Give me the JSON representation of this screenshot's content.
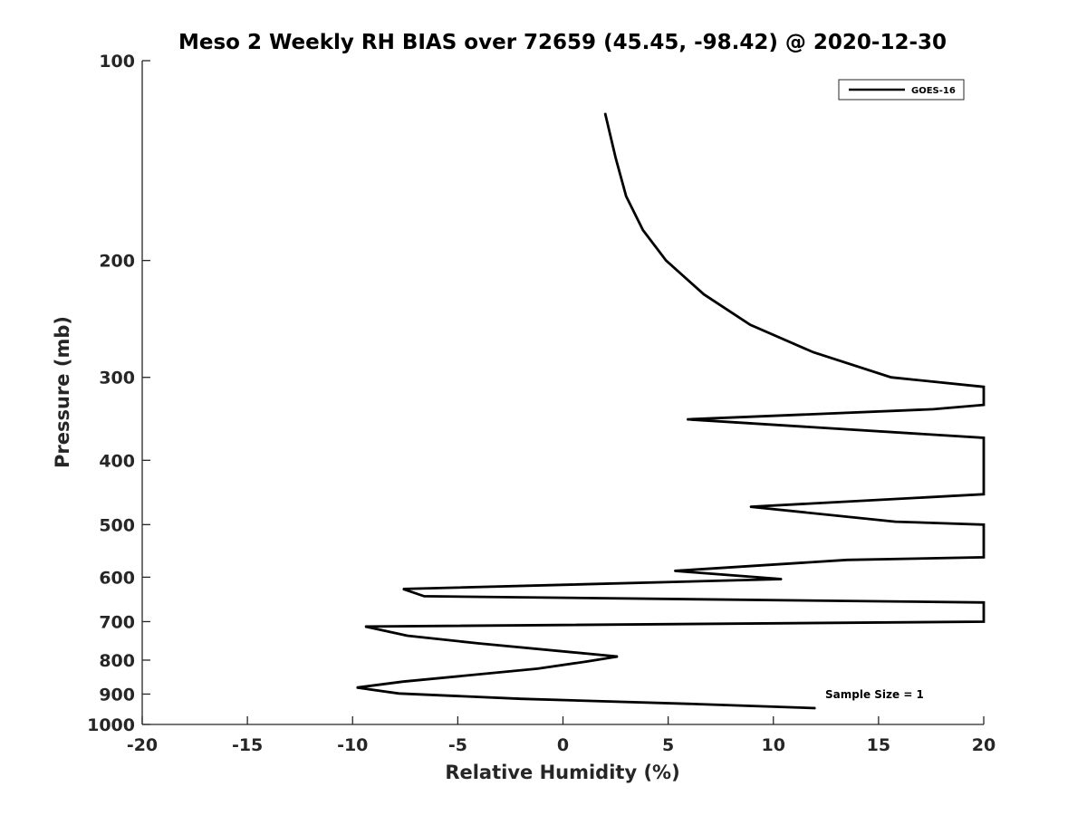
{
  "chart_data": {
    "type": "line",
    "title": "Meso 2 Weekly RH BIAS over 72659 (45.45, -98.42) @ 2020-12-30",
    "xlabel": "Relative Humidity (%)",
    "ylabel": "Pressure (mb)",
    "xlim": [
      -20,
      20
    ],
    "ylim": [
      100,
      1000
    ],
    "y_scale": "log",
    "y_reversed": true,
    "x_ticks": [
      "-20",
      "-15",
      "-10",
      "-5",
      "0",
      "5",
      "10",
      "15",
      "20"
    ],
    "y_ticks": [
      "100",
      "200",
      "300",
      "400",
      "500",
      "600",
      "700",
      "800",
      "900",
      "1000"
    ],
    "legend_position": "top-right",
    "annotation": "Sample Size = 1",
    "colors": {
      "line": "#000000",
      "axis": "#262626"
    },
    "series": [
      {
        "name": "GOES-16",
        "points": [
          [
            2.0,
            120
          ],
          [
            2.5,
            140
          ],
          [
            3.0,
            160
          ],
          [
            3.8,
            180
          ],
          [
            4.9,
            200
          ],
          [
            6.7,
            225
          ],
          [
            8.9,
            250
          ],
          [
            11.9,
            275
          ],
          [
            15.6,
            300
          ],
          [
            20.0,
            310
          ],
          [
            20.0,
            330
          ],
          [
            17.6,
            335
          ],
          [
            5.9,
            347
          ],
          [
            20.0,
            370
          ],
          [
            20.0,
            450
          ],
          [
            8.9,
            470
          ],
          [
            15.8,
            495
          ],
          [
            20.0,
            500
          ],
          [
            20.0,
            560
          ],
          [
            13.5,
            565
          ],
          [
            5.3,
            587
          ],
          [
            10.4,
            604
          ],
          [
            -7.6,
            625
          ],
          [
            -6.6,
            641
          ],
          [
            20.0,
            655
          ],
          [
            20.0,
            700
          ],
          [
            -9.4,
            712
          ],
          [
            -7.4,
            735
          ],
          [
            -4.0,
            755
          ],
          [
            2.6,
            790
          ],
          [
            1.1,
            804
          ],
          [
            -1.2,
            824
          ],
          [
            -7.6,
            862
          ],
          [
            -9.8,
            880
          ],
          [
            -7.8,
            898
          ],
          [
            -2.0,
            915
          ],
          [
            6.5,
            932
          ],
          [
            12.0,
            945
          ]
        ]
      }
    ]
  }
}
